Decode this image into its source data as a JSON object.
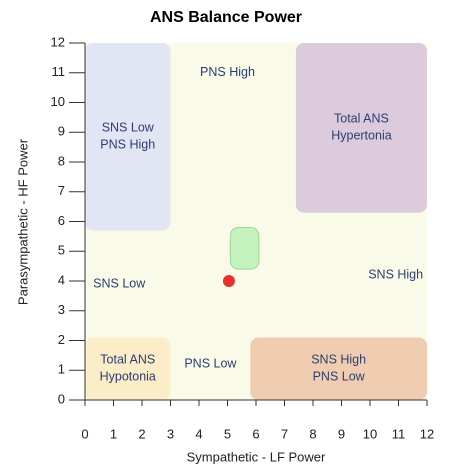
{
  "chart_data": {
    "type": "scatter",
    "title": "ANS Balance Power",
    "xlabel": "Sympathetic - LF Power",
    "ylabel": "Parasympathetic - HF Power",
    "x": [
      5.05
    ],
    "values": [
      4.0
    ],
    "color": "#e8302c",
    "xlim": [
      0,
      12
    ],
    "ylim": [
      0,
      12
    ],
    "xticks": [
      0,
      1,
      2,
      3,
      4,
      5,
      6,
      7,
      8,
      9,
      10,
      11,
      12
    ],
    "yticks": [
      0,
      1,
      2,
      3,
      4,
      5,
      6,
      7,
      8,
      9,
      10,
      11,
      12
    ],
    "background": "#fafae8",
    "regions": [
      {
        "lines": [
          "SNS Low",
          "PNS High"
        ],
        "xlim": [
          0,
          3
        ],
        "ylim": [
          5.7,
          12
        ],
        "color": "#e2e5f3"
      },
      {
        "lines": [
          "Total ANS",
          "Hypertonia"
        ],
        "xlim": [
          7.4,
          12
        ],
        "ylim": [
          6.3,
          12
        ],
        "color": "#dccbdc"
      },
      {
        "lines": [
          "Total ANS",
          "Hypotonia"
        ],
        "xlim": [
          0,
          3
        ],
        "ylim": [
          0,
          2.1
        ],
        "color": "#fbedc8"
      },
      {
        "lines": [
          "SNS High",
          "PNS Low"
        ],
        "xlim": [
          5.8,
          12
        ],
        "ylim": [
          0,
          2.1
        ],
        "color": "#f0cdb1"
      },
      {
        "lines": [],
        "xlim": [
          5.1,
          6.1
        ],
        "ylim": [
          4.4,
          5.8
        ],
        "color": "#c4f3bd"
      }
    ],
    "annotations": [
      {
        "text": "PNS High",
        "x": 5,
        "y": 11
      },
      {
        "text": "SNS Low",
        "x": 1.2,
        "y": 3.9
      },
      {
        "text": "SNS High",
        "x": 10.9,
        "y": 4.2
      },
      {
        "text": "PNS Low",
        "x": 4.4,
        "y": 1.2
      }
    ]
  }
}
